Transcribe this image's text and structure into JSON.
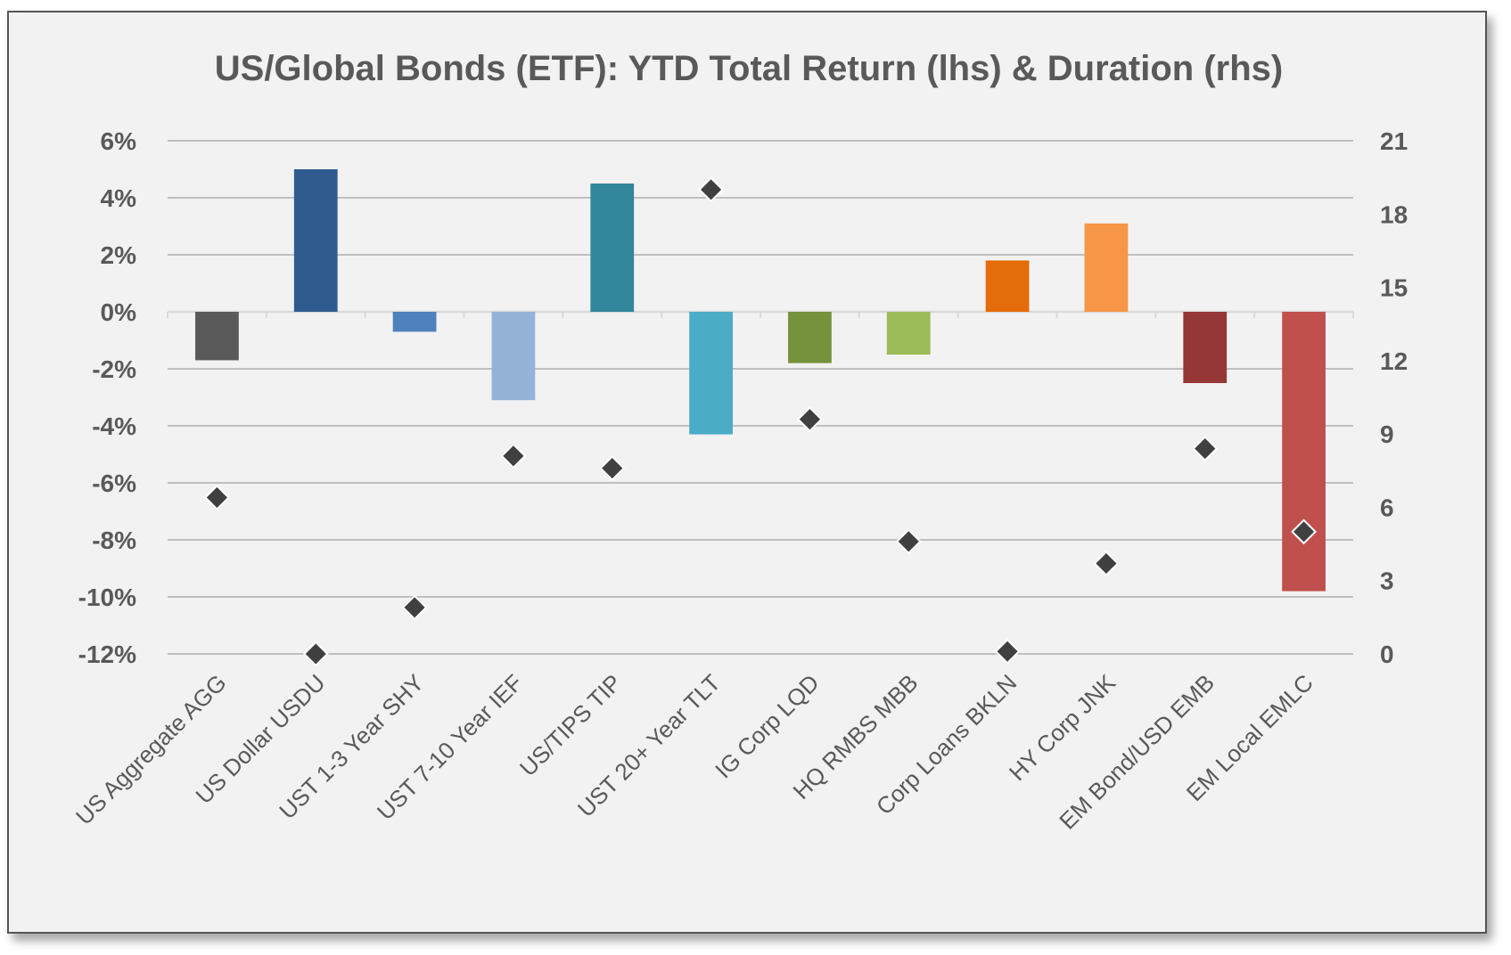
{
  "chart_data": {
    "type": "bar",
    "title": "US/Global Bonds (ETF): YTD Total Return (lhs) & Duration (rhs)",
    "categories": [
      "US Aggregate AGG",
      "US Dollar USDU",
      "UST 1-3 Year SHY",
      "UST 7-10 Year IEF",
      "US/TIPS TIP",
      "UST 20+ Year TLT",
      "IG Corp LQD",
      "HQ RMBS MBB",
      "Corp Loans BKLN",
      "HY Corp JNK",
      "EM Bond/USD EMB",
      "EM Local EMLC"
    ],
    "series": [
      {
        "type": "bar",
        "axis": "left",
        "values": [
          -1.7,
          5.0,
          -0.7,
          -3.1,
          4.5,
          -4.3,
          -1.8,
          -1.5,
          1.8,
          3.1,
          -2.5,
          -9.8
        ],
        "colors": [
          "#595959",
          "#2f5b8f",
          "#4f81bd",
          "#95b3d7",
          "#31869b",
          "#4bacc6",
          "#76923c",
          "#9bbb59",
          "#e46c0a",
          "#f79646",
          "#953735",
          "#c0504d"
        ]
      },
      {
        "type": "scatter",
        "axis": "right",
        "values": [
          6.4,
          0.0,
          1.9,
          8.1,
          7.6,
          19.0,
          9.6,
          4.6,
          0.1,
          3.7,
          8.4,
          5.0
        ],
        "color": "#404040"
      }
    ],
    "y_left": {
      "min": -12,
      "max": 6,
      "step": 2,
      "ticks": [
        "6%",
        "4%",
        "2%",
        "0%",
        "-2%",
        "-4%",
        "-6%",
        "-8%",
        "-10%",
        "-12%"
      ]
    },
    "y_right": {
      "min": 0,
      "max": 21,
      "step": 3,
      "ticks": [
        "21",
        "18",
        "15",
        "12",
        "9",
        "6",
        "3",
        "0"
      ]
    },
    "grid": true,
    "legend": "none"
  }
}
